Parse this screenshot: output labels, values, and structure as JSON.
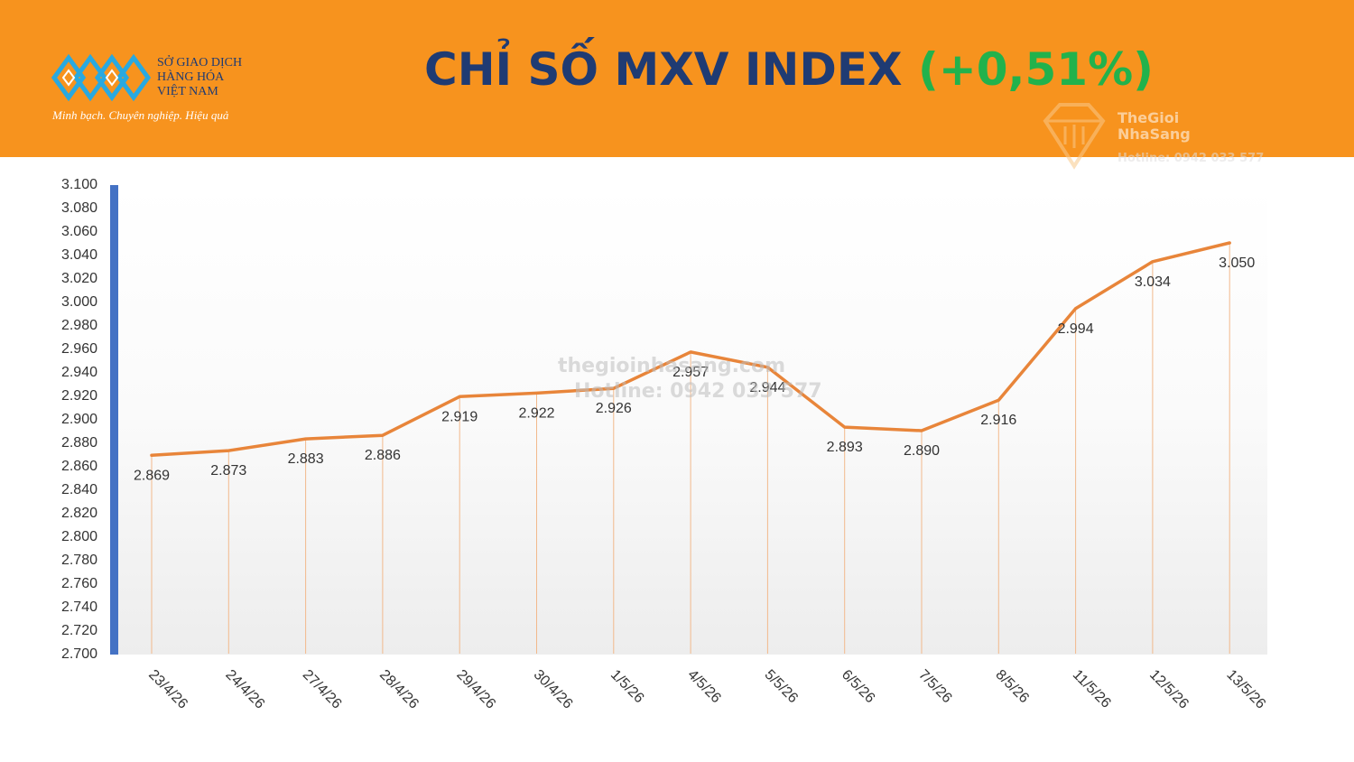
{
  "header": {
    "org_name_line1": "SỞ GIAO DỊCH",
    "org_name_line2": "HÀNG HÓA",
    "org_name_line3": "VIỆT NAM",
    "tagline": "Minh bạch. Chuyên nghiệp. Hiệu quả",
    "title_main": "CHỈ SỐ MXV INDEX",
    "title_change": "(+0,51%)"
  },
  "watermark": {
    "brand_line1": "TheGioi",
    "brand_line2": "NhaSang",
    "hotline": "Hotline: 0942 033 577",
    "site": "thegioinhasang.com",
    "center_hotline": "Hotline: 0942 033 577"
  },
  "colors": {
    "header_bg": "#f7931e",
    "title_text": "#1f3b73",
    "title_change": "#22b24c",
    "line": "#e8853a",
    "axis_bar": "#4472c4"
  },
  "chart_data": {
    "type": "line",
    "title": "CHỈ SỐ MXV INDEX (+0,51%)",
    "categories": [
      "23/4/26",
      "24/4/26",
      "27/4/26",
      "28/4/26",
      "29/4/26",
      "30/4/26",
      "1/5/26",
      "4/5/26",
      "5/5/26",
      "6/5/26",
      "7/5/26",
      "8/5/26",
      "11/5/26",
      "12/5/26",
      "13/5/26"
    ],
    "values": [
      2869,
      2873,
      2883,
      2886,
      2919,
      2922,
      2926,
      2957,
      2944,
      2893,
      2890,
      2916,
      2994,
      3034,
      3050
    ],
    "value_labels": [
      "2.869",
      "2.873",
      "2.883",
      "2.886",
      "2.919",
      "2.922",
      "2.926",
      "2.957",
      "2.944",
      "2.893",
      "2.890",
      "2.916",
      "2.994",
      "3.034",
      "3.050"
    ],
    "ylim": [
      2700,
      3100
    ],
    "yticks": [
      "2.700",
      "2.720",
      "2.740",
      "2.760",
      "2.780",
      "2.800",
      "2.820",
      "2.840",
      "2.860",
      "2.880",
      "2.900",
      "2.920",
      "2.940",
      "2.960",
      "2.980",
      "3.000",
      "3.020",
      "3.040",
      "3.060",
      "3.080",
      "3.100"
    ],
    "grid": false,
    "drop_lines": true,
    "xlabel": "",
    "ylabel": ""
  }
}
